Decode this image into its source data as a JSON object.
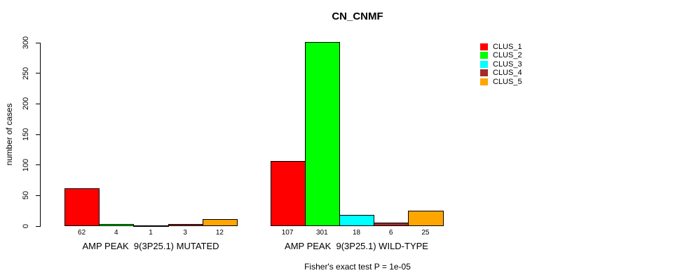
{
  "chart_data": {
    "type": "bar",
    "title": "CN_CNMF",
    "ylabel": "number of cases",
    "xlabel": "",
    "ylim": [
      0,
      300
    ],
    "yticks": [
      0,
      50,
      100,
      150,
      200,
      250,
      300
    ],
    "grid": false,
    "legend_position": "right",
    "categories": [
      "AMP PEAK  9(3P25.1) MUTATED",
      "AMP PEAK  9(3P25.1) WILD-TYPE"
    ],
    "series": [
      {
        "name": "CLUS_1",
        "color": "#FF0000",
        "values": [
          62,
          107
        ]
      },
      {
        "name": "CLUS_2",
        "color": "#00FF00",
        "values": [
          4,
          301
        ]
      },
      {
        "name": "CLUS_3",
        "color": "#00FFFF",
        "values": [
          1,
          18
        ]
      },
      {
        "name": "CLUS_4",
        "color": "#A52A2A",
        "values": [
          3,
          6
        ]
      },
      {
        "name": "CLUS_5",
        "color": "#FFA500",
        "values": [
          12,
          25
        ]
      }
    ],
    "bar_value_labels": true,
    "annotation": "Fisher's exact test P = 1e-05"
  }
}
